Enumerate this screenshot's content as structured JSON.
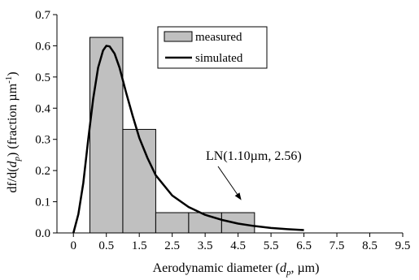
{
  "chart_data": {
    "type": "bar",
    "title": "",
    "xlabel": {
      "pre": "Aerodynamic diameter (",
      "var": "d",
      "sub": "p",
      "post": ", µm)"
    },
    "ylabel": {
      "pre": "df/d(",
      "var": "d",
      "sub": "p",
      "mid": ") (fraction µm",
      "sup": "-1",
      "post": ")"
    },
    "xlim": [
      -0.5,
      10
    ],
    "ylim": [
      0,
      0.7
    ],
    "x_ticks": [
      "0",
      "0.5",
      "1.5",
      "2.5",
      "3.5",
      "4.5",
      "5.5",
      "6.5",
      "7.5",
      "8.5",
      "9.5"
    ],
    "x_tick_values": [
      0,
      1,
      2,
      3,
      4,
      5,
      6,
      7,
      8,
      9,
      10
    ],
    "y_ticks": [
      "0.0",
      "0.1",
      "0.2",
      "0.3",
      "0.4",
      "0.5",
      "0.6",
      "0.7"
    ],
    "y_tick_values": [
      0,
      0.1,
      0.2,
      0.3,
      0.4,
      0.5,
      0.6,
      0.7
    ],
    "series": [
      {
        "name": "measured",
        "type": "bar",
        "color": "#c0c0c0",
        "edge_color": "#000000",
        "bins": [
          [
            0.5,
            1.5
          ],
          [
            1.5,
            2.5
          ],
          [
            2.5,
            3.5
          ],
          [
            3.5,
            4.5
          ],
          [
            4.5,
            5.5
          ]
        ],
        "values": [
          0.627,
          0.332,
          0.065,
          0.065,
          0.065
        ]
      },
      {
        "name": "simulated",
        "type": "line",
        "color": "#000000",
        "x": [
          0,
          0.15,
          0.3,
          0.45,
          0.6,
          0.75,
          0.9,
          1.0,
          1.1,
          1.25,
          1.4,
          1.6,
          1.8,
          2.0,
          2.25,
          2.5,
          3.0,
          3.5,
          4.0,
          4.5,
          5.0,
          5.5,
          6.0,
          6.5,
          7.0
        ],
        "values": [
          0.0,
          0.06,
          0.16,
          0.3,
          0.43,
          0.53,
          0.585,
          0.6,
          0.598,
          0.575,
          0.53,
          0.45,
          0.375,
          0.305,
          0.24,
          0.185,
          0.12,
          0.083,
          0.058,
          0.042,
          0.03,
          0.022,
          0.016,
          0.012,
          0.009
        ]
      }
    ],
    "legend": {
      "position": "top-right",
      "entries": [
        "measured",
        "simulated"
      ]
    },
    "annotation": {
      "text": "LN(1.10µm,  2.56)",
      "points_to": {
        "x": 5.1,
        "y": 0.105
      }
    },
    "grid": false
  }
}
